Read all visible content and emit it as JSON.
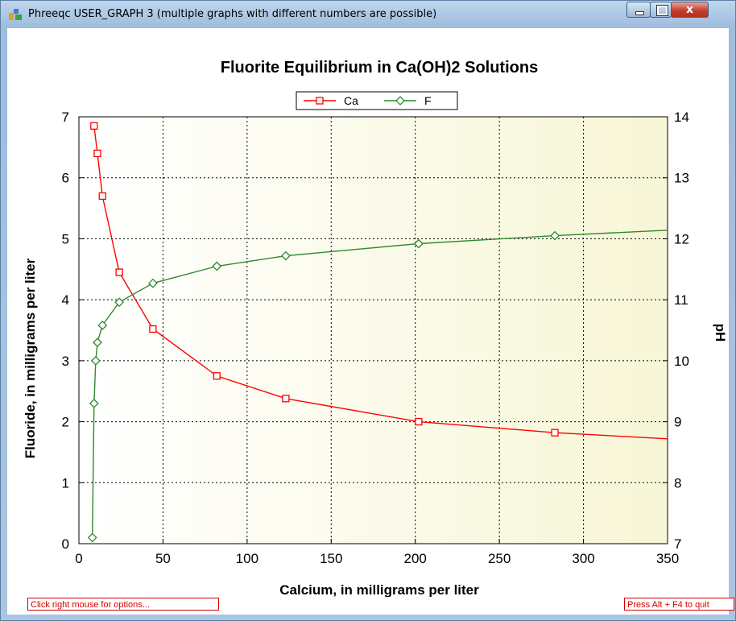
{
  "window": {
    "title": "Phreeqc USER_GRAPH 3 (multiple graphs with different numbers are possible)",
    "close_glyph": "x"
  },
  "status": {
    "left": "Click right mouse for options...",
    "right": "Press Alt + F4 to quit"
  },
  "colors": {
    "ca": "#ff0000",
    "f": "#2e8b2e",
    "plot_bg_left": "#ffffff",
    "plot_bg_right": "#f7f6d6"
  },
  "chart_data": {
    "type": "line",
    "title": "Fluorite Equilibrium in Ca(OH)2 Solutions",
    "xlabel": "Calcium, in milligrams per liter",
    "ylabel": "Fluoride, in milligrams per liter",
    "y2label": "pH",
    "xlim": [
      0,
      350
    ],
    "ylim": [
      0,
      7
    ],
    "y2lim": [
      7,
      14
    ],
    "xticks": [
      "0",
      "50",
      "100",
      "150",
      "200",
      "250",
      "300",
      "350"
    ],
    "yticks": [
      "0",
      "1",
      "2",
      "3",
      "4",
      "5",
      "6",
      "7"
    ],
    "y2ticks": [
      "7",
      "8",
      "9",
      "10",
      "11",
      "12",
      "13",
      "14"
    ],
    "grid": true,
    "legend_position": "top-center",
    "series": [
      {
        "name": "Ca",
        "marker": "square",
        "axis": "left",
        "points": [
          [
            9,
            6.85
          ],
          [
            11,
            6.4
          ],
          [
            14,
            5.7
          ],
          [
            24,
            4.45
          ],
          [
            44,
            3.52
          ],
          [
            82,
            2.75
          ],
          [
            123,
            2.38
          ],
          [
            202,
            2.0
          ],
          [
            283,
            1.82
          ],
          [
            350,
            1.72
          ]
        ],
        "marked": [
          0,
          1,
          2,
          3,
          4,
          5,
          6,
          7,
          8
        ]
      },
      {
        "name": "F",
        "marker": "diamond",
        "axis": "right",
        "points": [
          [
            8,
            7.1
          ],
          [
            9,
            9.3
          ],
          [
            10,
            10.0
          ],
          [
            11,
            10.3
          ],
          [
            14,
            10.58
          ],
          [
            24,
            10.96
          ],
          [
            44,
            11.27
          ],
          [
            82,
            11.55
          ],
          [
            123,
            11.72
          ],
          [
            202,
            11.92
          ],
          [
            283,
            12.05
          ],
          [
            350,
            12.14
          ]
        ],
        "marked": [
          0,
          1,
          2,
          3,
          4,
          5,
          6,
          7,
          8,
          9,
          10
        ]
      }
    ]
  }
}
